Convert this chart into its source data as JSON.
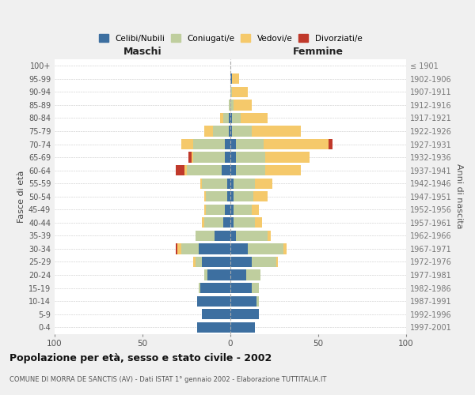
{
  "age_groups": [
    "0-4",
    "5-9",
    "10-14",
    "15-19",
    "20-24",
    "25-29",
    "30-34",
    "35-39",
    "40-44",
    "45-49",
    "50-54",
    "55-59",
    "60-64",
    "65-69",
    "70-74",
    "75-79",
    "80-84",
    "85-89",
    "90-94",
    "95-99",
    "100+"
  ],
  "birth_years": [
    "1997-2001",
    "1992-1996",
    "1987-1991",
    "1982-1986",
    "1977-1981",
    "1972-1976",
    "1967-1971",
    "1962-1966",
    "1957-1961",
    "1952-1956",
    "1947-1951",
    "1942-1946",
    "1937-1941",
    "1932-1936",
    "1927-1931",
    "1922-1926",
    "1917-1921",
    "1912-1916",
    "1907-1911",
    "1902-1906",
    "≤ 1901"
  ],
  "maschi": {
    "celibi": [
      19,
      16,
      19,
      17,
      13,
      16,
      18,
      9,
      4,
      3,
      2,
      2,
      5,
      3,
      3,
      1,
      1,
      0,
      0,
      0,
      0
    ],
    "coniugati": [
      0,
      0,
      0,
      1,
      2,
      4,
      10,
      11,
      11,
      11,
      12,
      14,
      20,
      18,
      18,
      9,
      3,
      1,
      0,
      0,
      0
    ],
    "vedovi": [
      0,
      0,
      0,
      0,
      0,
      1,
      2,
      0,
      1,
      1,
      1,
      1,
      1,
      1,
      7,
      5,
      2,
      0,
      0,
      0,
      0
    ],
    "divorziati": [
      0,
      0,
      0,
      0,
      0,
      0,
      1,
      0,
      0,
      0,
      0,
      0,
      5,
      2,
      0,
      0,
      0,
      0,
      0,
      0,
      0
    ]
  },
  "femmine": {
    "nubili": [
      14,
      16,
      15,
      12,
      9,
      12,
      10,
      3,
      2,
      2,
      2,
      2,
      3,
      3,
      3,
      1,
      1,
      0,
      0,
      1,
      0
    ],
    "coniugate": [
      0,
      0,
      1,
      4,
      8,
      14,
      20,
      18,
      12,
      10,
      11,
      12,
      17,
      17,
      16,
      11,
      5,
      2,
      1,
      0,
      0
    ],
    "vedove": [
      0,
      0,
      0,
      0,
      0,
      1,
      2,
      2,
      4,
      4,
      8,
      10,
      20,
      25,
      37,
      28,
      15,
      10,
      9,
      4,
      0
    ],
    "divorziate": [
      0,
      0,
      0,
      0,
      0,
      0,
      0,
      0,
      0,
      0,
      0,
      0,
      0,
      0,
      2,
      0,
      0,
      0,
      0,
      0,
      0
    ]
  },
  "colors": {
    "celibi_nubili": "#3d6fa0",
    "coniugati": "#bfce9e",
    "vedovi": "#f5c96b",
    "divorziati": "#c0392b"
  },
  "title": "Popolazione per età, sesso e stato civile - 2002",
  "subtitle": "COMUNE DI MORRA DE SANCTIS (AV) - Dati ISTAT 1° gennaio 2002 - Elaborazione TUTTITALIA.IT",
  "xlabel_left": "Maschi",
  "xlabel_right": "Femmine",
  "ylabel_left": "Fasce di età",
  "ylabel_right": "Anni di nascita",
  "xlim": 100,
  "bg_color": "#f0f0f0",
  "plot_bg": "#ffffff",
  "legend_labels": [
    "Celibi/Nubili",
    "Coniugati/e",
    "Vedovi/e",
    "Divorziati/e"
  ]
}
